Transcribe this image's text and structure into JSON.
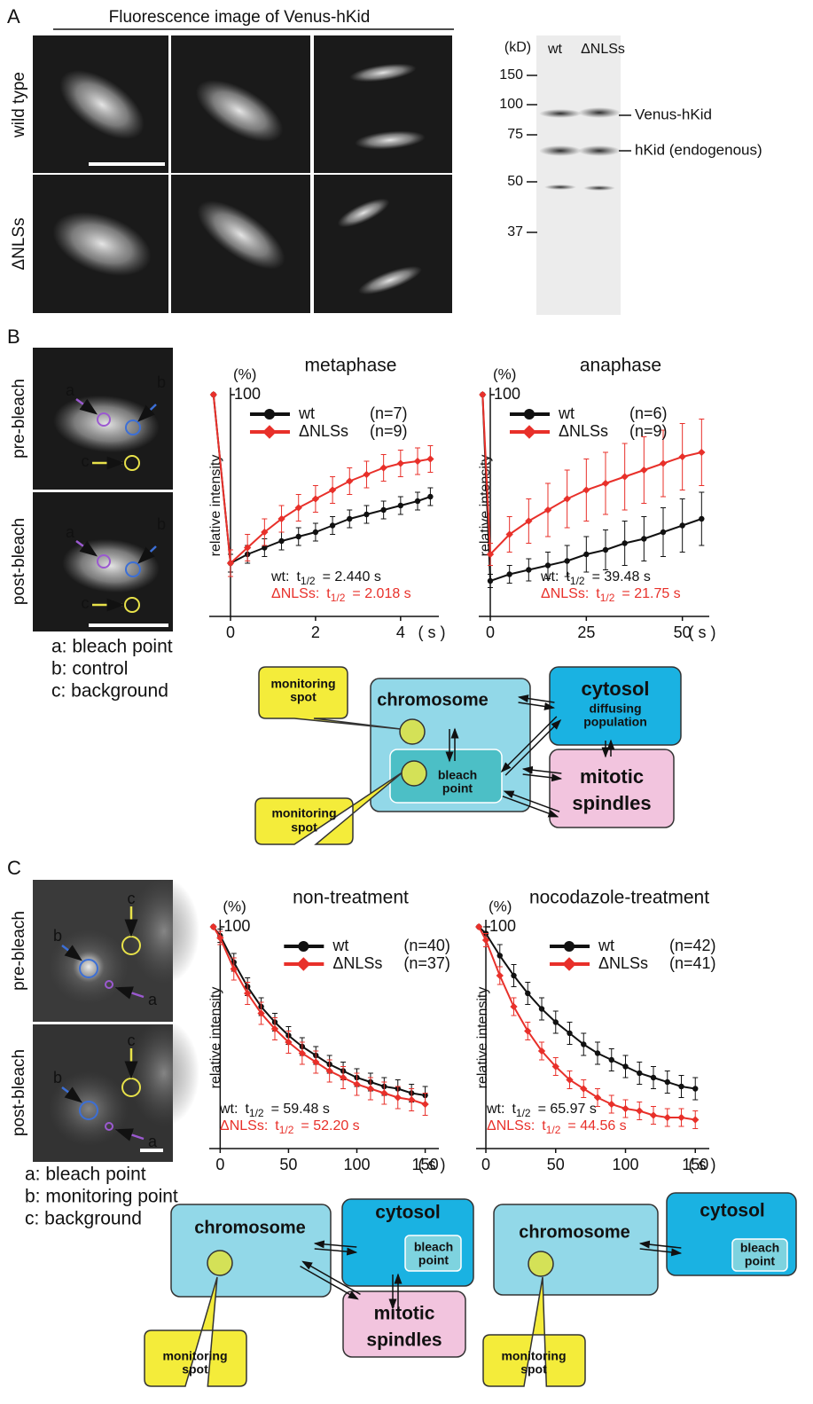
{
  "panel_a": {
    "label": "A",
    "title": "Fluorescence image of Venus-hKid",
    "rows": [
      "wild type",
      "ΔNLSs"
    ],
    "blot": {
      "unit": "(kD)",
      "lanes": [
        "wt",
        "ΔNLSs"
      ],
      "markers": [
        150,
        100,
        75,
        50,
        37
      ],
      "bands": [
        "Venus-hKid",
        "hKid (endogenous)"
      ]
    }
  },
  "panel_b": {
    "label": "B",
    "images": [
      "pre-bleach",
      "post-bleach"
    ],
    "rois": [
      "a",
      "b",
      "c"
    ],
    "key": [
      "a: bleach point",
      "b: control",
      "c: background"
    ],
    "diagram": {
      "chromosome": "chromosome",
      "bleach_point": [
        "bleach",
        "point"
      ],
      "cytosol": "cytosol",
      "cytosol_detail": [
        "diffusing",
        "population"
      ],
      "spindles": [
        "mitotic",
        "spindles"
      ],
      "monitoring": [
        "monitoring",
        "spot"
      ]
    }
  },
  "panel_c": {
    "label": "C",
    "images": [
      "pre-bleach",
      "post-bleach"
    ],
    "rois": [
      "a",
      "b",
      "c"
    ],
    "key": [
      "a: bleach point",
      "b: monitoring point",
      "c: background"
    ],
    "diagram_left": {
      "chromosome": "chromosome",
      "cytosol": "cytosol",
      "bleach_point": [
        "bleach",
        "point"
      ],
      "spindles": [
        "mitotic",
        "spindles"
      ],
      "monitoring": [
        "monitoring",
        "spot"
      ]
    },
    "diagram_right": {
      "chromosome": "chromosome",
      "cytosol": "cytosol",
      "bleach_point": [
        "bleach",
        "point"
      ],
      "monitoring": [
        "monitoring",
        "spot"
      ]
    }
  },
  "chart_data": [
    {
      "type": "line",
      "title": "metaphase",
      "y_unit": "(%)",
      "ylabel": "relative intensity",
      "x_unit": "( s )",
      "x": [
        -0.4,
        0,
        0.4,
        0.8,
        1.2,
        1.6,
        2.0,
        2.4,
        2.8,
        3.2,
        3.6,
        4.0,
        4.4,
        4.7
      ],
      "series": [
        {
          "name": "wt",
          "n": "(n=7)",
          "color": "#111111",
          "marker": "circle",
          "values": [
            100,
            24,
            28,
            31,
            34,
            36,
            38,
            41,
            44,
            46,
            48,
            50,
            52,
            54
          ],
          "errors": [
            0,
            4,
            4,
            4,
            4,
            4,
            4,
            4,
            4,
            4,
            4,
            4,
            4,
            4
          ]
        },
        {
          "name": "ΔNLSs",
          "n": "(n=9)",
          "color": "#e8302a",
          "marker": "diamond",
          "values": [
            100,
            24,
            31,
            38,
            44,
            49,
            53,
            57,
            61,
            64,
            67,
            69,
            70,
            71
          ],
          "errors": [
            0,
            6,
            6,
            6,
            6,
            6,
            6,
            6,
            6,
            6,
            6,
            6,
            6,
            6
          ]
        }
      ],
      "annotations": [
        {
          "label": "wt:",
          "t": "t",
          "sub": "1/2",
          "value": "= 2.440 s"
        },
        {
          "label": "ΔNLSs:",
          "t": "t",
          "sub": "1/2",
          "value": "= 2.018 s"
        }
      ],
      "xlim": [
        -0.5,
        4.9
      ],
      "xticks": [
        0,
        2,
        4
      ],
      "ylim": [
        0,
        100
      ],
      "yticks": [
        100
      ]
    },
    {
      "type": "line",
      "title": "anaphase",
      "y_unit": "(%)",
      "ylabel": "relative intensity",
      "x_unit": "( s )",
      "x": [
        -2,
        0,
        5,
        10,
        15,
        20,
        25,
        30,
        35,
        40,
        45,
        50,
        55
      ],
      "series": [
        {
          "name": "wt",
          "n": "(n=6)",
          "color": "#111111",
          "marker": "circle",
          "values": [
            100,
            16,
            19,
            21,
            23,
            25,
            28,
            30,
            33,
            35,
            38,
            41,
            44
          ],
          "errors": [
            0,
            3,
            4,
            5,
            6,
            7,
            8,
            9,
            10,
            10,
            11,
            12,
            12
          ]
        },
        {
          "name": "ΔNLSs",
          "n": "(n=9)",
          "color": "#e8302a",
          "marker": "diamond",
          "values": [
            100,
            28,
            37,
            43,
            48,
            53,
            57,
            60,
            63,
            66,
            69,
            72,
            74
          ],
          "errors": [
            0,
            5,
            8,
            10,
            12,
            13,
            14,
            14,
            15,
            15,
            15,
            15,
            15
          ]
        }
      ],
      "annotations": [
        {
          "label": "wt:",
          "t": "t",
          "sub": "1/2",
          "value": "= 39.48 s"
        },
        {
          "label": "ΔNLSs:",
          "t": "t",
          "sub": "1/2",
          "value": "= 21.75 s"
        }
      ],
      "xlim": [
        -3,
        57
      ],
      "xticks": [
        0,
        25,
        50
      ],
      "ylim": [
        0,
        100
      ],
      "yticks": [
        100
      ]
    },
    {
      "type": "line",
      "title": "non-treatment",
      "y_unit": "(%)",
      "ylabel": "relative intensity",
      "x_unit": "( s )",
      "x": [
        -5,
        0,
        10,
        20,
        30,
        40,
        50,
        60,
        70,
        80,
        90,
        100,
        110,
        120,
        130,
        140,
        150
      ],
      "series": [
        {
          "name": "wt",
          "n": "(n=40)",
          "color": "#111111",
          "marker": "circle",
          "values": [
            100,
            96,
            84,
            73,
            64,
            57,
            51,
            46,
            42,
            38,
            35,
            32,
            30,
            28,
            27,
            25,
            24
          ],
          "errors": [
            0,
            3,
            4,
            4,
            4,
            4,
            4,
            4,
            4,
            4,
            4,
            4,
            4,
            4,
            4,
            4,
            4
          ]
        },
        {
          "name": "ΔNLSs",
          "n": "(n=37)",
          "color": "#e8302a",
          "marker": "diamond",
          "values": [
            100,
            95,
            81,
            70,
            61,
            54,
            48,
            43,
            39,
            35,
            32,
            29,
            27,
            25,
            23,
            22,
            20
          ],
          "errors": [
            0,
            3,
            5,
            5,
            5,
            5,
            5,
            5,
            5,
            5,
            5,
            5,
            5,
            5,
            5,
            5,
            5
          ]
        }
      ],
      "annotations": [
        {
          "label": "wt:",
          "t": "t",
          "sub": "1/2",
          "value": "= 59.48 s"
        },
        {
          "label": "ΔNLSs:",
          "t": "t",
          "sub": "1/2",
          "value": "= 52.20 s"
        }
      ],
      "xlim": [
        -8,
        160
      ],
      "xticks": [
        0,
        50,
        100,
        150
      ],
      "ylim": [
        0,
        100
      ],
      "yticks": [
        100
      ]
    },
    {
      "type": "line",
      "title": "nocodazole-treatment",
      "y_unit": "(%)",
      "ylabel": "relative intensity",
      "x_unit": "( s )",
      "x": [
        -5,
        0,
        10,
        20,
        30,
        40,
        50,
        60,
        70,
        80,
        90,
        100,
        110,
        120,
        130,
        140,
        150
      ],
      "series": [
        {
          "name": "wt",
          "n": "(n=42)",
          "color": "#111111",
          "marker": "circle",
          "values": [
            100,
            97,
            87,
            78,
            70,
            63,
            57,
            52,
            47,
            43,
            40,
            37,
            34,
            32,
            30,
            28,
            27
          ],
          "errors": [
            0,
            3,
            5,
            5,
            5,
            5,
            5,
            5,
            5,
            5,
            5,
            5,
            5,
            5,
            5,
            5,
            5
          ]
        },
        {
          "name": "ΔNLSs",
          "n": "(n=41)",
          "color": "#e8302a",
          "marker": "diamond",
          "values": [
            100,
            94,
            78,
            64,
            53,
            44,
            37,
            31,
            27,
            23,
            20,
            18,
            17,
            15,
            14,
            14,
            13
          ],
          "errors": [
            0,
            3,
            4,
            4,
            4,
            4,
            4,
            4,
            4,
            4,
            4,
            4,
            4,
            4,
            4,
            4,
            4
          ]
        }
      ],
      "annotations": [
        {
          "label": "wt:",
          "t": "t",
          "sub": "1/2",
          "value": "= 65.97 s"
        },
        {
          "label": "ΔNLSs:",
          "t": "t",
          "sub": "1/2",
          "value": "= 44.56 s"
        }
      ],
      "xlim": [
        -7,
        160
      ],
      "xticks": [
        0,
        50,
        100,
        150
      ],
      "ylim": [
        0,
        100
      ],
      "yticks": [
        100
      ]
    }
  ]
}
